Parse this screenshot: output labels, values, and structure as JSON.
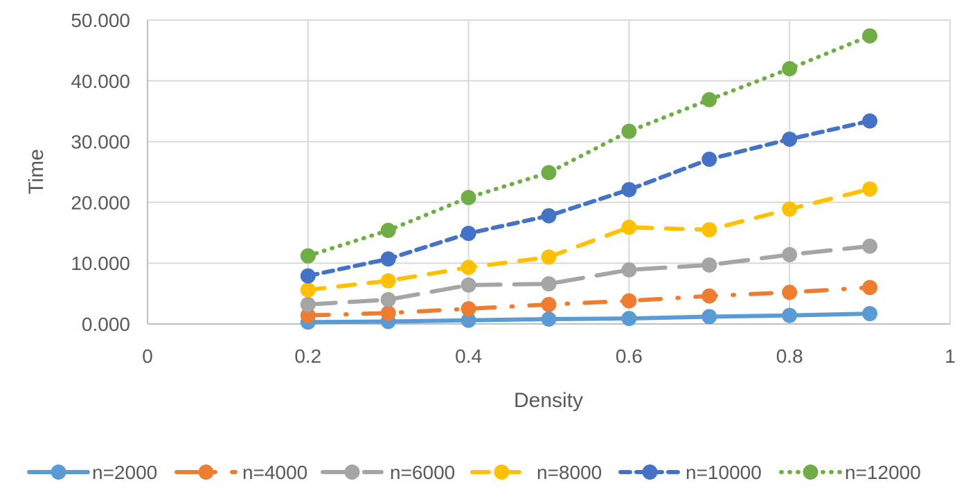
{
  "chart_data": {
    "type": "line",
    "title": "",
    "xlabel": "Density",
    "ylabel": "Time",
    "xlim": [
      0,
      1
    ],
    "ylim": [
      0,
      50
    ],
    "grid": true,
    "legend_position": "bottom",
    "x_ticks": [
      "0",
      "0.2",
      "0.4",
      "0.6",
      "0.8",
      "1"
    ],
    "x_tick_values": [
      0,
      0.2,
      0.4,
      0.6,
      0.8,
      1
    ],
    "y_ticks": [
      "0.000",
      "10.000",
      "20.000",
      "30.000",
      "40.000",
      "50.000"
    ],
    "y_tick_values": [
      0,
      10,
      20,
      30,
      40,
      50
    ],
    "x": [
      0.2,
      0.3,
      0.4,
      0.5,
      0.6,
      0.7,
      0.8,
      0.9
    ],
    "series": [
      {
        "name": "n=2000",
        "color": "#5B9BD5",
        "dash": "solid",
        "values": [
          0.3,
          0.4,
          0.6,
          0.8,
          0.9,
          1.2,
          1.4,
          1.7
        ]
      },
      {
        "name": "n=4000",
        "color": "#ED7D31",
        "dash": "dash-dot",
        "values": [
          1.4,
          1.8,
          2.5,
          3.2,
          3.8,
          4.6,
          5.2,
          6.0
        ]
      },
      {
        "name": "n=6000",
        "color": "#A5A5A5",
        "dash": "long-dash",
        "values": [
          3.2,
          4.0,
          6.4,
          6.6,
          8.9,
          9.7,
          11.4,
          12.8
        ]
      },
      {
        "name": "n=8000",
        "color": "#FFC000",
        "dash": "dash",
        "values": [
          5.6,
          7.1,
          9.3,
          11.0,
          15.9,
          15.5,
          18.9,
          22.2
        ]
      },
      {
        "name": "n=10000",
        "color": "#4472C4",
        "dash": "short-dash",
        "values": [
          7.9,
          10.7,
          14.9,
          17.8,
          22.1,
          27.1,
          30.4,
          33.4
        ]
      },
      {
        "name": "n=12000",
        "color": "#70AD47",
        "dash": "dot",
        "values": [
          11.2,
          15.4,
          20.8,
          24.9,
          31.7,
          36.9,
          42.0,
          47.4
        ]
      }
    ]
  }
}
